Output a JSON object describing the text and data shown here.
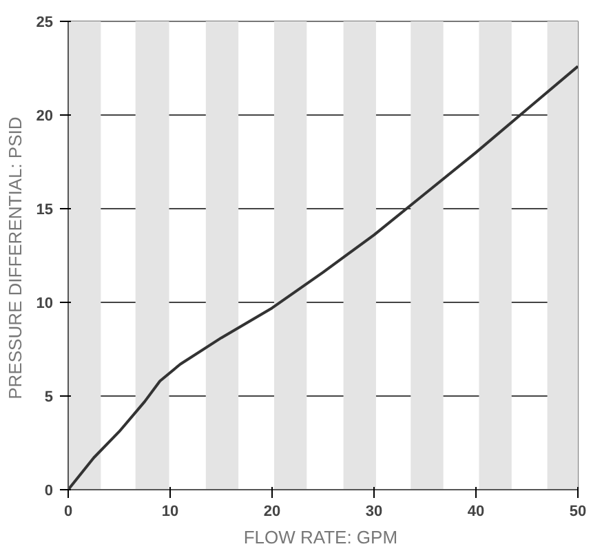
{
  "chart_data": {
    "type": "line",
    "xlabel": "FLOW RATE:  GPM",
    "ylabel": "PRESSURE DIFFERENTIAL:  PSID",
    "x": [
      0,
      2.5,
      5,
      7.5,
      9,
      11,
      15,
      20,
      25,
      30,
      35,
      40,
      45,
      50
    ],
    "series": [
      {
        "color": "#333333",
        "values": [
          0,
          1.7,
          3.1,
          4.7,
          5.8,
          6.7,
          8.1,
          9.7,
          11.6,
          13.6,
          15.8,
          18.0,
          20.3,
          22.6
        ]
      }
    ],
    "xlim": [
      0,
      50
    ],
    "ylim": [
      0,
      25
    ],
    "xticks": [
      0,
      10,
      20,
      30,
      40,
      50
    ],
    "yticks": [
      0,
      5,
      10,
      15,
      20,
      25
    ],
    "grid": "y",
    "bands": [
      {
        "axis": "x",
        "from": 0,
        "to": 3.2,
        "color": "#e4e4e4"
      },
      {
        "axis": "x",
        "from": 6.6,
        "to": 9.9,
        "color": "#e4e4e4"
      },
      {
        "axis": "x",
        "from": 13.5,
        "to": 16.7,
        "color": "#e4e4e4"
      },
      {
        "axis": "x",
        "from": 20.2,
        "to": 23.4,
        "color": "#e4e4e4"
      },
      {
        "axis": "x",
        "from": 27,
        "to": 30.2,
        "color": "#e4e4e4"
      },
      {
        "axis": "x",
        "from": 33.6,
        "to": 36.8,
        "color": "#e4e4e4"
      },
      {
        "axis": "x",
        "from": 40.3,
        "to": 43.5,
        "color": "#e4e4e4"
      },
      {
        "axis": "x",
        "from": 47,
        "to": 50,
        "color": "#e4e4e4"
      }
    ]
  }
}
